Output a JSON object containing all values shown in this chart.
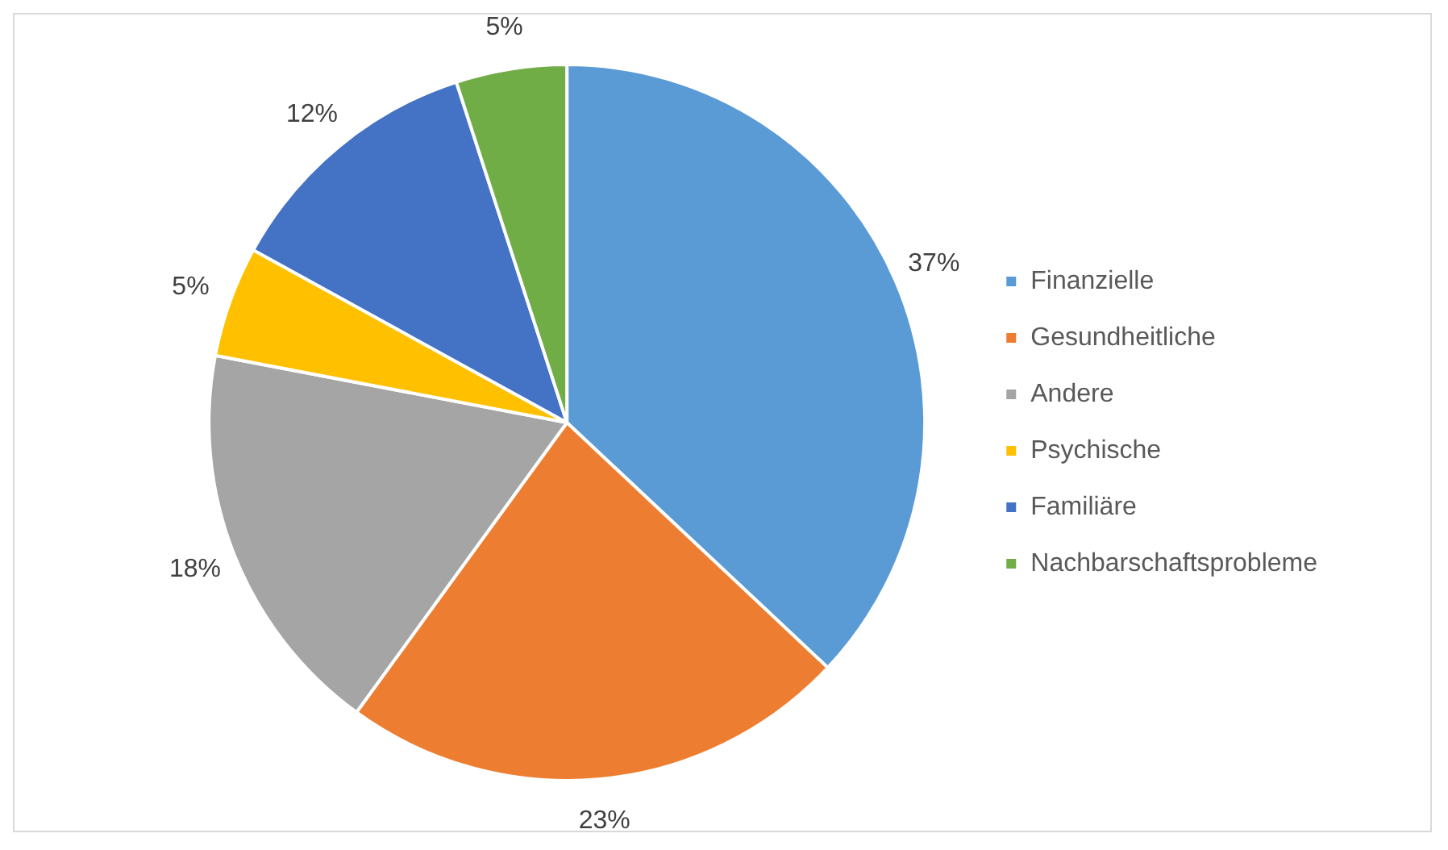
{
  "chart_data": {
    "type": "pie",
    "categories": [
      "Finanzielle",
      "Gesundheitliche",
      "Andere",
      "Psychische",
      "Familiäre",
      "Nachbarschaftsprobleme"
    ],
    "values": [
      37,
      23,
      18,
      5,
      12,
      5
    ],
    "colors": [
      "#5b9bd5",
      "#ed7d31",
      "#a5a5a5",
      "#ffc000",
      "#4472c4",
      "#70ad47"
    ],
    "value_labels": [
      "37%",
      "23%",
      "18%",
      "5%",
      "12%",
      "5%"
    ],
    "legend": "right"
  }
}
